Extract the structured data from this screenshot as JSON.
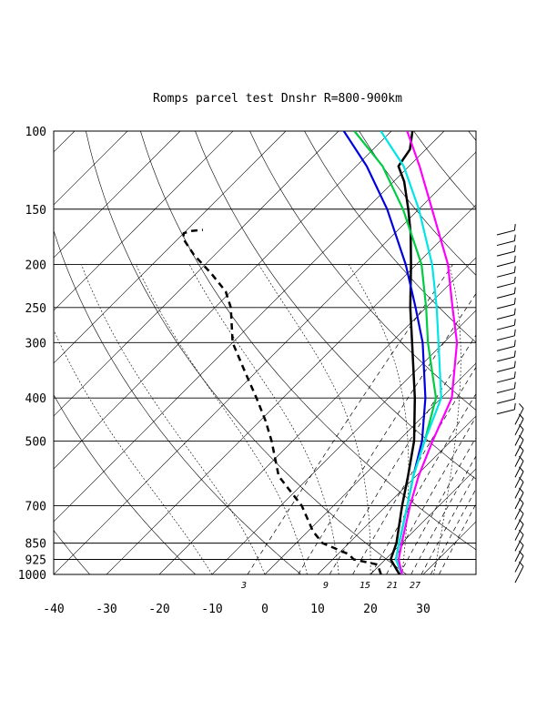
{
  "chart_data": {
    "type": "line",
    "subtype": "skew-T log-p diagram",
    "title": "Romps parcel test Dnshr R=800-900km",
    "p_ticks": [
      100,
      150,
      200,
      250,
      300,
      400,
      500,
      700,
      850,
      925,
      1000
    ],
    "t_ticks": [
      -40,
      -30,
      -20,
      -10,
      0,
      10,
      20,
      30
    ],
    "mixing_ratio_labels": [
      "3",
      "9",
      "15",
      "21",
      "27"
    ],
    "p_range": [
      1000,
      100
    ],
    "t_range_at_1000": [
      -40,
      40
    ],
    "grid": true,
    "series": [
      {
        "color": "#000000",
        "style": "solid",
        "width": 2.5,
        "points": [
          [
            1000,
            25.5
          ],
          [
            925,
            21
          ],
          [
            850,
            19
          ],
          [
            700,
            13
          ],
          [
            600,
            8.5
          ],
          [
            500,
            3
          ],
          [
            400,
            -5
          ],
          [
            300,
            -16
          ],
          [
            250,
            -23
          ],
          [
            200,
            -31
          ],
          [
            170,
            -37
          ],
          [
            150,
            -42
          ],
          [
            130,
            -48
          ],
          [
            120,
            -52
          ],
          [
            110,
            -53
          ],
          [
            100,
            -56
          ]
        ]
      },
      {
        "color": "#000000",
        "style": "dashed",
        "width": 2.5,
        "points": [
          [
            1000,
            22
          ],
          [
            950,
            19.5
          ],
          [
            925,
            14
          ],
          [
            900,
            12
          ],
          [
            850,
            5
          ],
          [
            800,
            1
          ],
          [
            700,
            -6
          ],
          [
            600,
            -16
          ],
          [
            500,
            -24
          ],
          [
            450,
            -29
          ],
          [
            400,
            -35
          ],
          [
            350,
            -42
          ],
          [
            300,
            -50
          ],
          [
            250,
            -57
          ],
          [
            230,
            -61
          ],
          [
            210,
            -67
          ],
          [
            190,
            -74
          ],
          [
            175,
            -79
          ],
          [
            170,
            -80
          ],
          [
            168,
            -79
          ],
          [
            167,
            -77
          ]
        ]
      },
      {
        "color": "#0000dd",
        "style": "solid",
        "width": 2.2,
        "points": [
          [
            1000,
            26
          ],
          [
            925,
            22
          ],
          [
            850,
            19.5
          ],
          [
            700,
            14
          ],
          [
            600,
            9.5
          ],
          [
            500,
            4.5
          ],
          [
            400,
            -3
          ],
          [
            300,
            -14
          ],
          [
            250,
            -22
          ],
          [
            200,
            -32
          ],
          [
            150,
            -46
          ],
          [
            120,
            -58
          ],
          [
            100,
            -69
          ]
        ]
      },
      {
        "color": "#00cc44",
        "style": "solid",
        "width": 2.2,
        "points": [
          [
            1000,
            26
          ],
          [
            925,
            22
          ],
          [
            850,
            19.5
          ],
          [
            700,
            14
          ],
          [
            600,
            9.5
          ],
          [
            500,
            5
          ],
          [
            400,
            -1
          ],
          [
            300,
            -13
          ],
          [
            250,
            -20
          ],
          [
            200,
            -29
          ],
          [
            150,
            -43
          ],
          [
            120,
            -55
          ],
          [
            100,
            -67
          ]
        ]
      },
      {
        "color": "#00e5e5",
        "style": "solid",
        "width": 2.2,
        "points": [
          [
            1000,
            26
          ],
          [
            925,
            22
          ],
          [
            850,
            19.5
          ],
          [
            700,
            14
          ],
          [
            600,
            9.5
          ],
          [
            500,
            5
          ],
          [
            400,
            0
          ],
          [
            300,
            -11
          ],
          [
            250,
            -18
          ],
          [
            200,
            -27
          ],
          [
            150,
            -40
          ],
          [
            120,
            -51
          ],
          [
            100,
            -62
          ]
        ]
      },
      {
        "color": "#ff00ff",
        "style": "solid",
        "width": 2.2,
        "points": [
          [
            1000,
            26
          ],
          [
            925,
            22.5
          ],
          [
            850,
            20
          ],
          [
            700,
            14.5
          ],
          [
            600,
            10.5
          ],
          [
            500,
            6.5
          ],
          [
            400,
            2
          ],
          [
            300,
            -7.5
          ],
          [
            250,
            -15
          ],
          [
            200,
            -24
          ],
          [
            150,
            -37.5
          ],
          [
            120,
            -48
          ],
          [
            100,
            -57
          ]
        ]
      }
    ],
    "wind_barbs_rows": 34
  }
}
